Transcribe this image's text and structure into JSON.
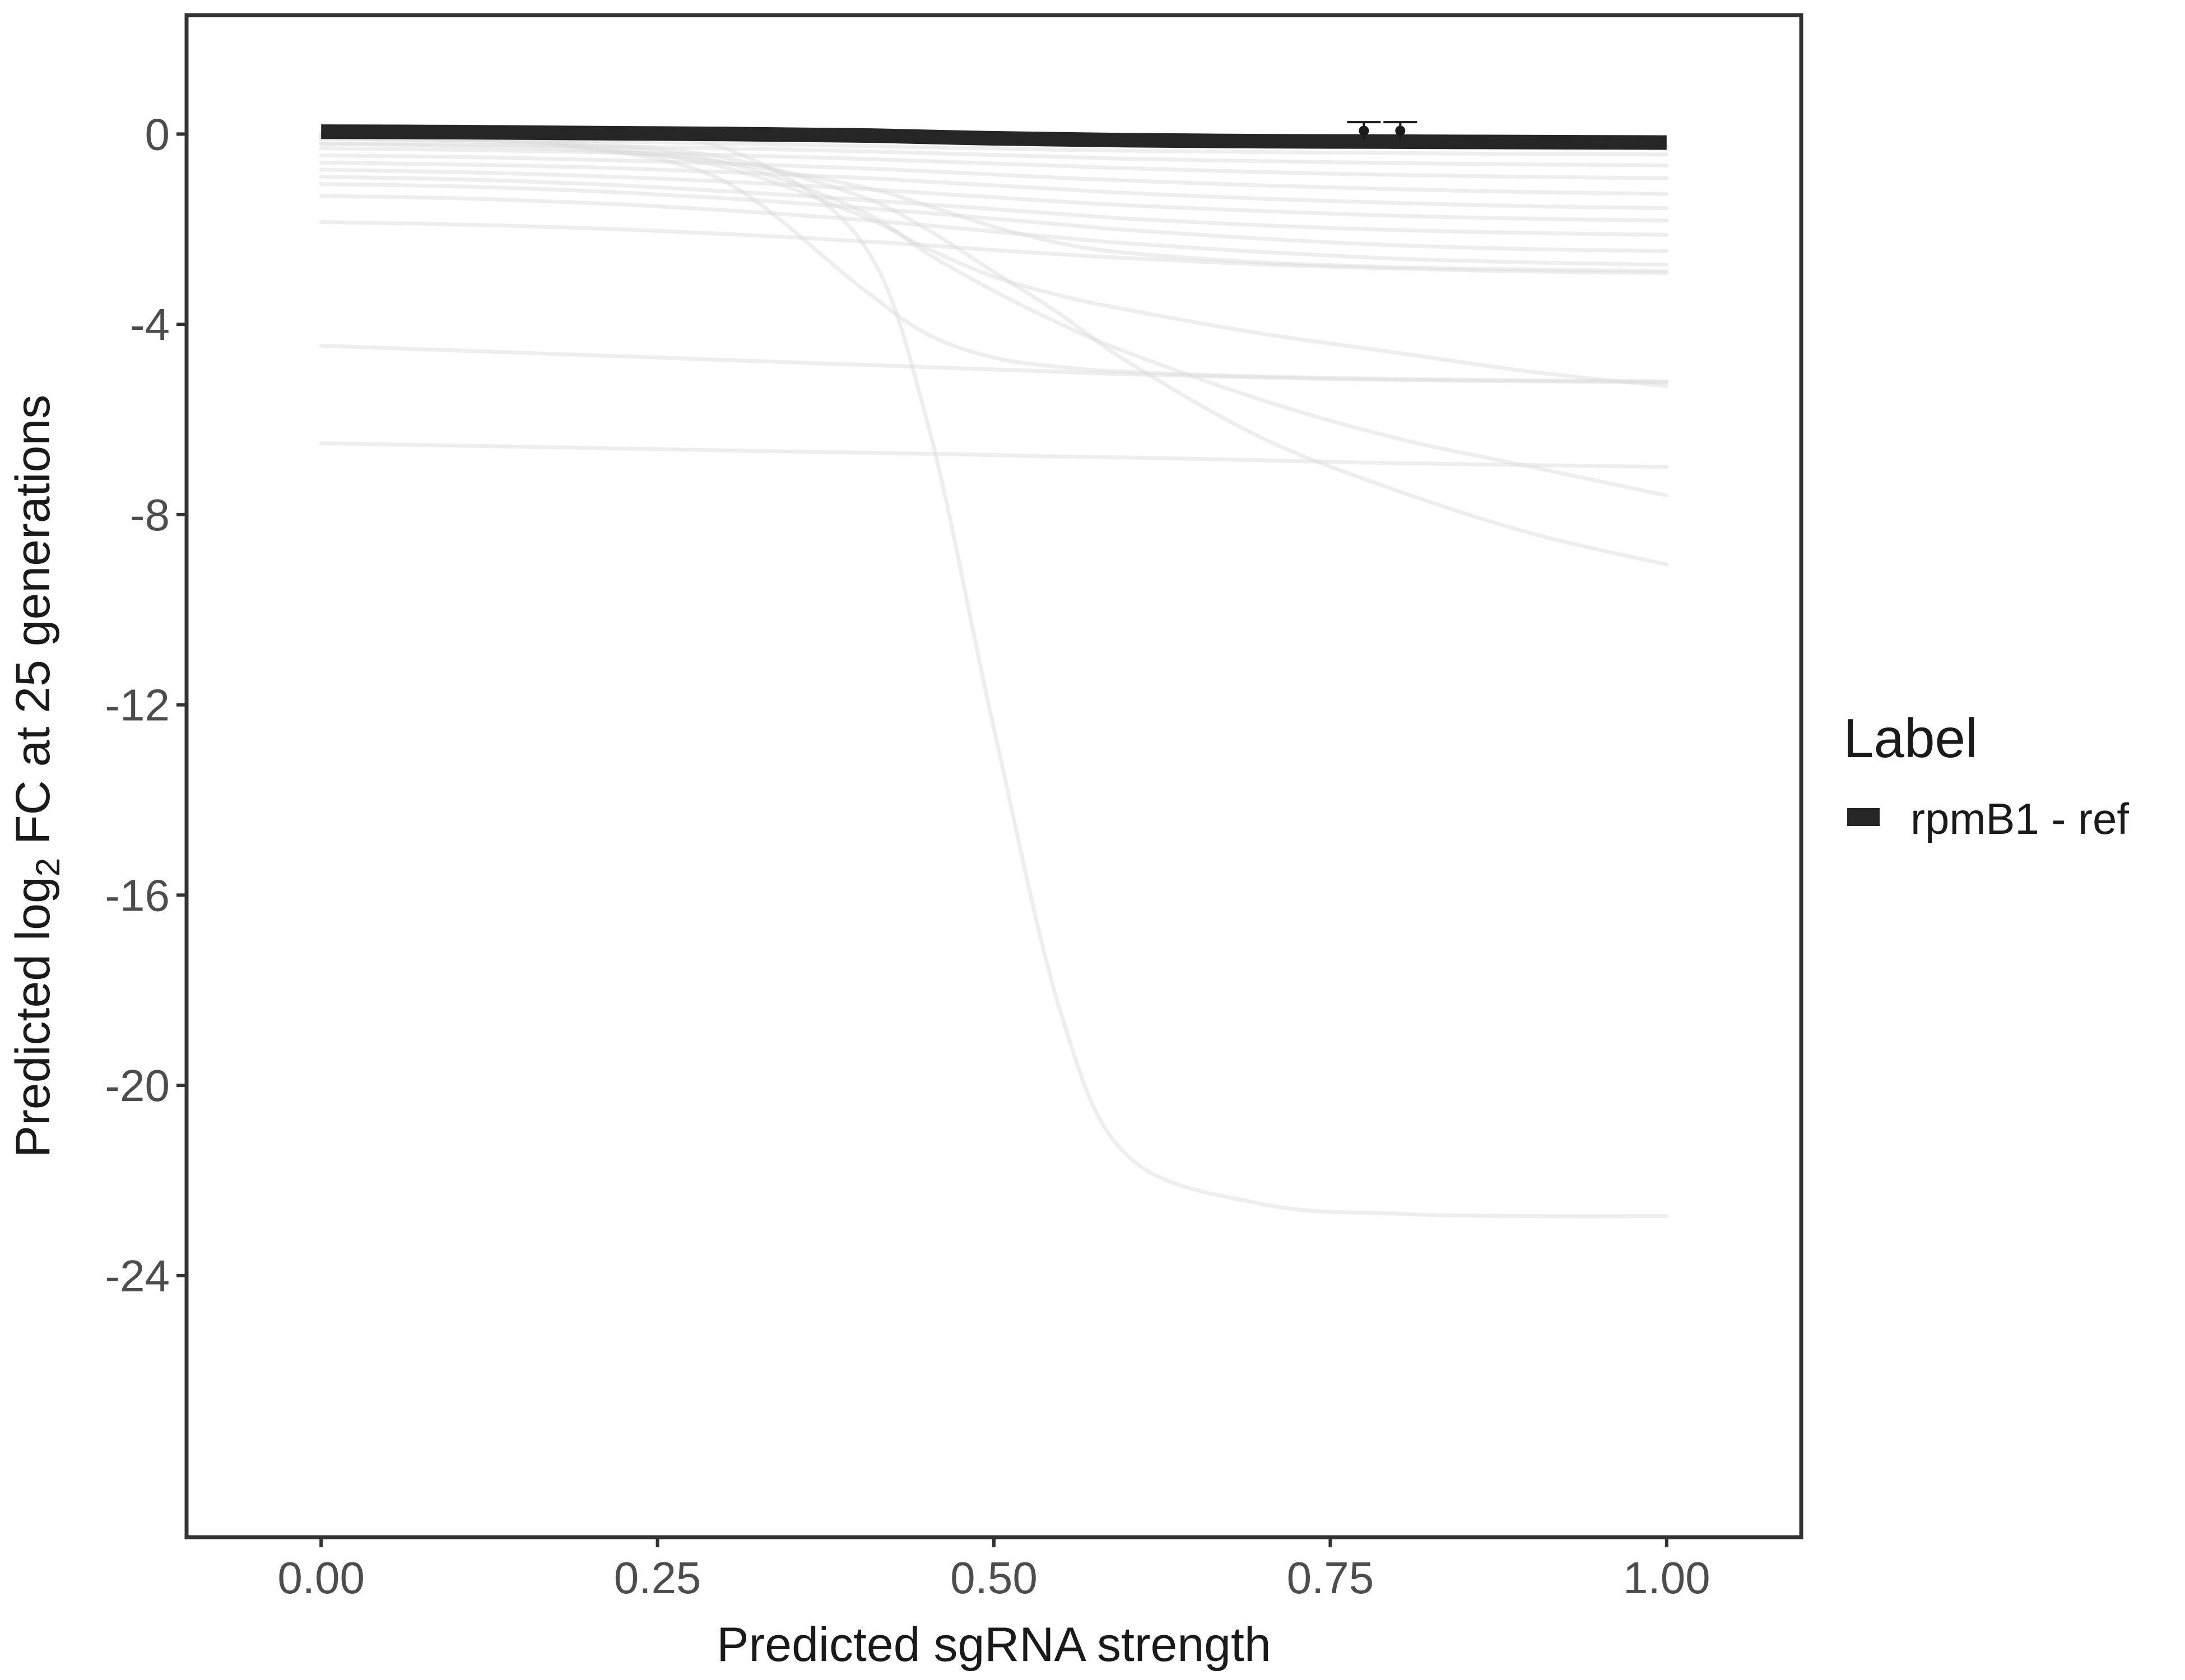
{
  "chart_data": {
    "type": "line",
    "title": "",
    "xlabel": "Predicted sgRNA strength",
    "ylabel_prefix": "Predicted  log",
    "ylabel_subscript": "2",
    "ylabel_suffix": " FC at 25 generations",
    "xlim": [
      -0.1,
      1.1
    ],
    "ylim": [
      -29.5,
      2.5
    ],
    "xticks": [
      0.0,
      0.25,
      0.5,
      0.75,
      1.0
    ],
    "xtick_labels": [
      "0.00",
      "0.25",
      "0.50",
      "0.75",
      "1.00"
    ],
    "yticks": [
      0,
      -4,
      -8,
      -12,
      -16,
      -20,
      -24
    ],
    "ytick_labels": [
      "0",
      "-4",
      "-8",
      "-12",
      "-16",
      "-20",
      "-24"
    ],
    "grid": false,
    "legend": {
      "title": "Label",
      "position": "right",
      "entries": [
        {
          "label": "rpmB1 - ref",
          "color": "#262626"
        }
      ]
    },
    "x": [
      0.0,
      0.1,
      0.2,
      0.3,
      0.4,
      0.45,
      0.5,
      0.55,
      0.6,
      0.7,
      0.8,
      0.9,
      1.0
    ],
    "highlight_series": {
      "name": "rpmB1 - ref",
      "color": "#262626",
      "values": [
        0.05,
        0.04,
        0.02,
        0.0,
        -0.03,
        -0.06,
        -0.09,
        -0.11,
        -0.13,
        -0.15,
        -0.16,
        -0.17,
        -0.18
      ]
    },
    "points": [
      {
        "x": 0.775,
        "y": 0.07,
        "err": 0.18
      },
      {
        "x": 0.802,
        "y": 0.07,
        "err": 0.18
      }
    ],
    "background_series_color": "#d9d9d9",
    "background_series": [
      [
        0.0,
        -0.02,
        -0.05,
        -0.08,
        -0.1,
        -0.12,
        -0.14,
        -0.16,
        -0.18,
        -0.2,
        -0.22,
        -0.24,
        -0.25
      ],
      [
        -0.1,
        -0.12,
        -0.15,
        -0.2,
        -0.25,
        -0.28,
        -0.3,
        -0.33,
        -0.35,
        -0.38,
        -0.4,
        -0.42,
        -0.43
      ],
      [
        -0.2,
        -0.22,
        -0.26,
        -0.3,
        -0.36,
        -0.4,
        -0.44,
        -0.48,
        -0.52,
        -0.57,
        -0.61,
        -0.64,
        -0.66
      ],
      [
        -0.3,
        -0.33,
        -0.38,
        -0.44,
        -0.52,
        -0.57,
        -0.62,
        -0.67,
        -0.72,
        -0.8,
        -0.86,
        -0.9,
        -0.93
      ],
      [
        -0.45,
        -0.48,
        -0.54,
        -0.62,
        -0.72,
        -0.78,
        -0.85,
        -0.92,
        -0.98,
        -1.08,
        -1.16,
        -1.22,
        -1.26
      ],
      [
        -0.6,
        -0.64,
        -0.7,
        -0.8,
        -0.92,
        -1.0,
        -1.08,
        -1.16,
        -1.24,
        -1.36,
        -1.45,
        -1.52,
        -1.56
      ],
      [
        -0.75,
        -0.8,
        -0.88,
        -1.0,
        -1.15,
        -1.24,
        -1.33,
        -1.42,
        -1.5,
        -1.62,
        -1.72,
        -1.78,
        -1.82
      ],
      [
        -0.9,
        -0.95,
        -1.05,
        -1.2,
        -1.38,
        -1.48,
        -1.58,
        -1.68,
        -1.78,
        -1.92,
        -2.02,
        -2.08,
        -2.12
      ],
      [
        -1.05,
        -1.1,
        -1.2,
        -1.35,
        -1.55,
        -1.66,
        -1.78,
        -1.9,
        -2.02,
        -2.2,
        -2.34,
        -2.42,
        -2.46
      ],
      [
        -1.3,
        -1.35,
        -1.45,
        -1.6,
        -1.8,
        -1.92,
        -2.05,
        -2.18,
        -2.3,
        -2.48,
        -2.62,
        -2.7,
        -2.75
      ],
      [
        -1.85,
        -1.9,
        -1.98,
        -2.1,
        -2.25,
        -2.34,
        -2.44,
        -2.53,
        -2.61,
        -2.74,
        -2.83,
        -2.89,
        -2.92
      ],
      [
        -0.2,
        -0.25,
        -0.35,
        -0.6,
        -1.1,
        -1.5,
        -1.95,
        -2.3,
        -2.5,
        -2.7,
        -2.8,
        -2.85,
        -2.88
      ],
      [
        -0.1,
        -0.15,
        -0.3,
        -0.7,
        -1.7,
        -2.4,
        -3.0,
        -3.4,
        -3.7,
        -4.2,
        -4.6,
        -5.0,
        -5.3
      ],
      [
        -0.05,
        -0.1,
        -0.25,
        -0.6,
        -1.6,
        -2.5,
        -3.3,
        -4.0,
        -4.6,
        -5.6,
        -6.4,
        -7.0,
        -7.6
      ],
      [
        -0.05,
        -0.1,
        -0.3,
        -1.0,
        -3.2,
        -4.2,
        -4.7,
        -4.9,
        -5.0,
        -5.1,
        -5.15,
        -5.18,
        -5.2
      ],
      [
        0.0,
        -0.05,
        -0.2,
        -0.5,
        -1.3,
        -2.0,
        -2.9,
        -3.8,
        -4.8,
        -6.4,
        -7.5,
        -8.4,
        -9.05
      ],
      [
        -4.45,
        -4.55,
        -4.65,
        -4.75,
        -4.85,
        -4.9,
        -4.95,
        -5.0,
        -5.05,
        -5.12,
        -5.17,
        -5.2,
        -5.22
      ],
      [
        -6.5,
        -6.55,
        -6.6,
        -6.65,
        -6.7,
        -6.72,
        -6.75,
        -6.78,
        -6.8,
        -6.86,
        -6.92,
        -6.96,
        -7.0
      ],
      [
        -0.02,
        -0.05,
        -0.1,
        -0.3,
        -2.2,
        -6.0,
        -12.5,
        -18.5,
        -21.5,
        -22.5,
        -22.7,
        -22.75,
        -22.75
      ]
    ]
  }
}
